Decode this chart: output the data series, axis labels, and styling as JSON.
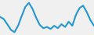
{
  "y_values": [
    60,
    55,
    42,
    28,
    22,
    38,
    62,
    85,
    95,
    80,
    58,
    40,
    32,
    35,
    30,
    38,
    32,
    42,
    35,
    48,
    38,
    65,
    82,
    88,
    72,
    52,
    38
  ],
  "line_color": "#2596d4",
  "line_width": 1.5,
  "background_color": "#f0f0f0",
  "ylim": [
    15,
    102
  ],
  "xlim": [
    0,
    26
  ]
}
